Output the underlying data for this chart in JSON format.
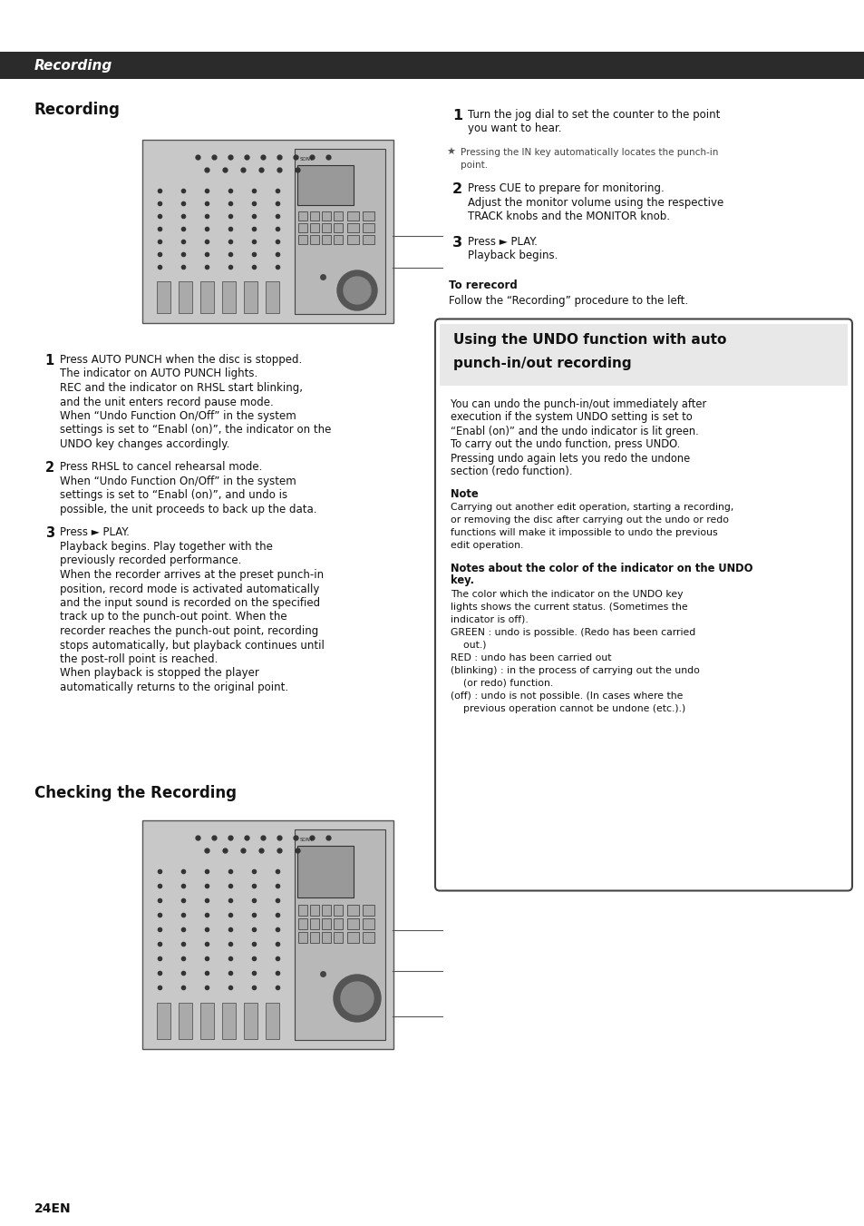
{
  "page_bg": "#ffffff",
  "header_bg": "#2b2b2b",
  "header_text": "Recording",
  "header_text_color": "#ffffff",
  "page_number": "24EN",
  "section_recording_title": "Recording",
  "section_checking_title": "Checking the Recording",
  "left_step1_text": [
    "Press AUTO PUNCH when the disc is stopped.",
    "The indicator on AUTO PUNCH lights.",
    "REC and the indicator on RHSL start blinking,",
    "and the unit enters record pause mode.",
    "When “Undo Function On/Off” in the system",
    "settings is set to “Enabl (on)”, the indicator on the",
    "UNDO key changes accordingly."
  ],
  "left_step2_text": [
    "Press RHSL to cancel rehearsal mode.",
    "When “Undo Function On/Off” in the system",
    "settings is set to “Enabl (on)”, and undo is",
    "possible, the unit proceeds to back up the data."
  ],
  "left_step3_text": [
    "Press ► PLAY.",
    "Playback begins. Play together with the",
    "previously recorded performance.",
    "When the recorder arrives at the preset punch-in",
    "position, record mode is activated automatically",
    "and the input sound is recorded on the specified",
    "track up to the punch-out point. When the",
    "recorder reaches the punch-out point, recording",
    "stops automatically, but playback continues until",
    "the post-roll point is reached.",
    "When playback is stopped the player",
    "automatically returns to the original point."
  ],
  "right_step1_text": [
    "Turn the jog dial to set the counter to the point",
    "you want to hear."
  ],
  "right_tip_line1": "Pressing the IN key automatically locates the punch-in",
  "right_tip_line2": "point.",
  "right_step2_text": [
    "Press CUE to prepare for monitoring.",
    "Adjust the monitor volume using the respective",
    "TRACK knobs and the MONITOR knob."
  ],
  "right_step3_text": [
    "Press ► PLAY.",
    "Playback begins."
  ],
  "rerecord_title": "To rerecord",
  "rerecord_text": "Follow the “Recording” procedure to the left.",
  "box_title_line1": "Using the UNDO function with auto",
  "box_title_line2": "punch-in/out recording",
  "box_body": [
    "You can undo the punch-in/out immediately after",
    "execution if the system UNDO setting is set to",
    "“Enabl (on)” and the undo indicator is lit green.",
    "To carry out the undo function, press UNDO.",
    "Pressing undo again lets you redo the undone",
    "section (redo function)."
  ],
  "box_note_title": "Note",
  "box_note_body": [
    "Carrying out another edit operation, starting a recording,",
    "or removing the disc after carrying out the undo or redo",
    "functions will make it impossible to undo the previous",
    "edit operation."
  ],
  "box_note2_title1": "Notes about the color of the indicator on the UNDO",
  "box_note2_title2": "key.",
  "box_note2_body": [
    "The color which the indicator on the UNDO key",
    "lights shows the current status. (Sometimes the",
    "indicator is off).",
    "GREEN : undo is possible. (Redo has been carried",
    "    out.)",
    "RED : undo has been carried out",
    "(blinking) : in the process of carrying out the undo",
    "    (or redo) function.",
    "(off) : undo is not possible. (In cases where the",
    "    previous operation cannot be undone (etc.).)"
  ],
  "box_border_color": "#444444",
  "box_bg_color": "#ffffff"
}
